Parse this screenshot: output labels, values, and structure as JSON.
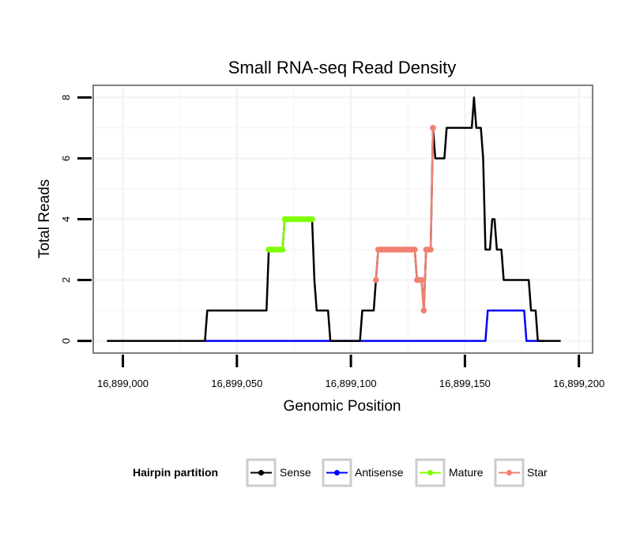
{
  "chart_data": {
    "type": "line",
    "title": "Small RNA-seq Read Density",
    "xlabel": "Genomic Position",
    "ylabel": "Total Reads",
    "xlim": [
      16898987,
      16899206
    ],
    "ylim": [
      -0.4,
      8.4
    ],
    "x_ticks": [
      16899000,
      16899050,
      16899100,
      16899150,
      16899200
    ],
    "x_tick_labels": [
      "16,899,000",
      "16,899,050",
      "16,899,100",
      "16,899,150",
      "16,899,200"
    ],
    "y_ticks": [
      0,
      2,
      4,
      6,
      8
    ],
    "y_tick_labels": [
      "0",
      "2",
      "4",
      "6",
      "8"
    ],
    "grid": true,
    "legend": {
      "title": "Hairpin partition",
      "position": "bottom",
      "entries": [
        {
          "name": "Sense",
          "color": "#000000"
        },
        {
          "name": "Antisense",
          "color": "#0000ff"
        },
        {
          "name": "Mature",
          "color": "#7fff00"
        },
        {
          "name": "Star",
          "color": "#f08070"
        }
      ]
    },
    "series": [
      {
        "name": "Sense",
        "color": "#000000",
        "points": [
          [
            16898993,
            0
          ],
          [
            16899036,
            0
          ],
          [
            16899037,
            1
          ],
          [
            16899063,
            1
          ],
          [
            16899064,
            3
          ],
          [
            16899070,
            3
          ],
          [
            16899071,
            4
          ],
          [
            16899083,
            4
          ],
          [
            16899084,
            2
          ],
          [
            16899085,
            1
          ],
          [
            16899090,
            1
          ],
          [
            16899091,
            0
          ],
          [
            16899104,
            0
          ],
          [
            16899105,
            1
          ],
          [
            16899110,
            1
          ],
          [
            16899111,
            2
          ],
          [
            16899112,
            3
          ],
          [
            16899128,
            3
          ],
          [
            16899129,
            2
          ],
          [
            16899131,
            2
          ],
          [
            16899132,
            1
          ],
          [
            16899133,
            3
          ],
          [
            16899135,
            3
          ],
          [
            16899136,
            7
          ],
          [
            16899137,
            6
          ],
          [
            16899141,
            6
          ],
          [
            16899142,
            7
          ],
          [
            16899153,
            7
          ],
          [
            16899154,
            8
          ],
          [
            16899155,
            7
          ],
          [
            16899157,
            7
          ],
          [
            16899158,
            6
          ],
          [
            16899159,
            3
          ],
          [
            16899161,
            3
          ],
          [
            16899162,
            4
          ],
          [
            16899163,
            4
          ],
          [
            16899164,
            3
          ],
          [
            16899166,
            3
          ],
          [
            16899167,
            2
          ],
          [
            16899178,
            2
          ],
          [
            16899179,
            1
          ],
          [
            16899181,
            1
          ],
          [
            16899182,
            0
          ],
          [
            16899192,
            0
          ]
        ]
      },
      {
        "name": "Antisense",
        "color": "#0000ff",
        "points": [
          [
            16899036,
            0
          ],
          [
            16899159,
            0
          ],
          [
            16899160,
            1
          ],
          [
            16899176,
            1
          ],
          [
            16899177,
            0
          ],
          [
            16899185,
            0
          ]
        ]
      },
      {
        "name": "Mature",
        "color": "#7fff00",
        "points": [
          [
            16899064,
            3
          ],
          [
            16899065,
            3
          ],
          [
            16899066,
            3
          ],
          [
            16899067,
            3
          ],
          [
            16899068,
            3
          ],
          [
            16899069,
            3
          ],
          [
            16899070,
            3
          ],
          [
            16899071,
            4
          ],
          [
            16899072,
            4
          ],
          [
            16899073,
            4
          ],
          [
            16899074,
            4
          ],
          [
            16899075,
            4
          ],
          [
            16899076,
            4
          ],
          [
            16899077,
            4
          ],
          [
            16899078,
            4
          ],
          [
            16899079,
            4
          ],
          [
            16899080,
            4
          ],
          [
            16899081,
            4
          ],
          [
            16899082,
            4
          ],
          [
            16899083,
            4
          ]
        ]
      },
      {
        "name": "Star",
        "color": "#f08070",
        "points": [
          [
            16899111,
            2
          ],
          [
            16899112,
            3
          ],
          [
            16899113,
            3
          ],
          [
            16899114,
            3
          ],
          [
            16899115,
            3
          ],
          [
            16899116,
            3
          ],
          [
            16899117,
            3
          ],
          [
            16899118,
            3
          ],
          [
            16899119,
            3
          ],
          [
            16899120,
            3
          ],
          [
            16899121,
            3
          ],
          [
            16899122,
            3
          ],
          [
            16899123,
            3
          ],
          [
            16899124,
            3
          ],
          [
            16899125,
            3
          ],
          [
            16899126,
            3
          ],
          [
            16899127,
            3
          ],
          [
            16899128,
            3
          ],
          [
            16899129,
            2
          ],
          [
            16899130,
            2
          ],
          [
            16899131,
            2
          ],
          [
            16899132,
            1
          ],
          [
            16899133,
            3
          ],
          [
            16899134,
            3
          ],
          [
            16899135,
            3
          ],
          [
            16899136,
            7
          ]
        ]
      }
    ]
  }
}
